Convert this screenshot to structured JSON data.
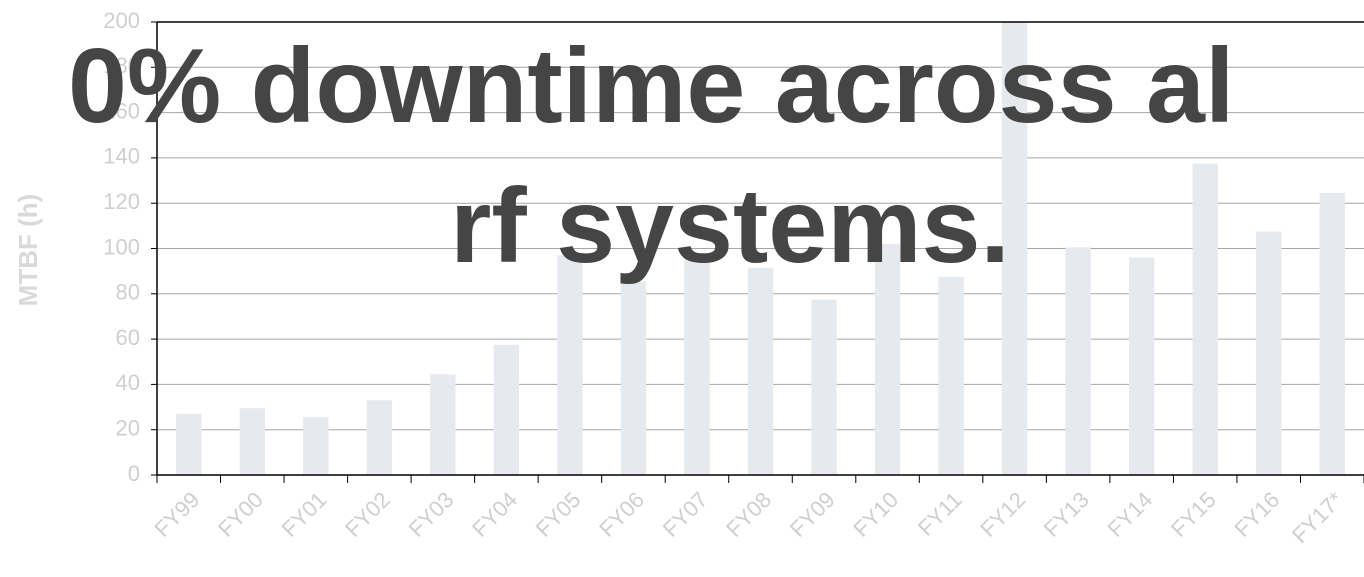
{
  "chart_data": {
    "type": "bar",
    "y_label": "MTBF (h)",
    "annotations": [
      "0% downtime across al",
      "rf systems."
    ],
    "categories": [
      "FY99",
      "FY00",
      "FY01",
      "FY02",
      "FY03",
      "FY04",
      "FY05",
      "FY06",
      "FY07",
      "FY08",
      "FY09",
      "FY10",
      "FY11",
      "FY12",
      "FY13",
      "FY14",
      "FY15",
      "FY16",
      "FY17*"
    ],
    "values": [
      27,
      29.5,
      25.5,
      33,
      44.5,
      57.5,
      97,
      85.5,
      98,
      91.5,
      77.5,
      102,
      87.5,
      200,
      100.5,
      96,
      137.5,
      107.5,
      124.5
    ],
    "color": "#e6eaee",
    "ylim": [
      0,
      200
    ],
    "yticks": [
      0,
      20,
      40,
      60,
      80,
      100,
      120,
      140,
      160,
      180,
      200
    ],
    "grid": true
  }
}
